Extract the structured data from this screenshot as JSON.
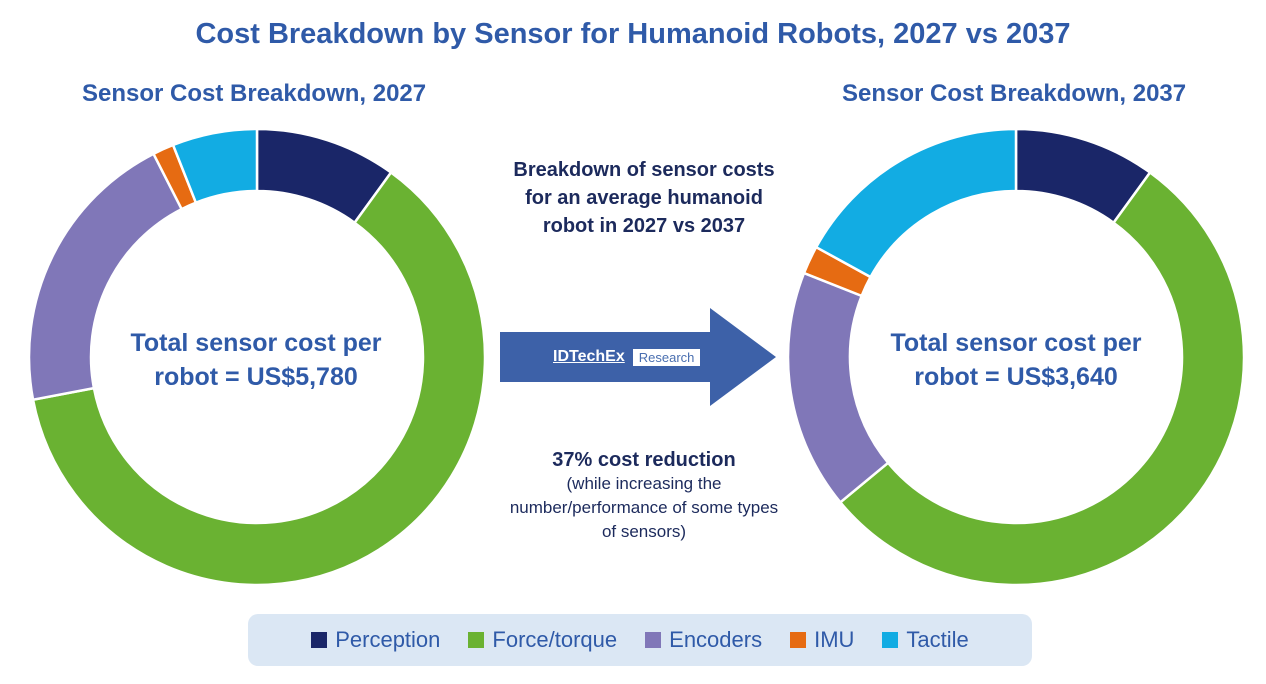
{
  "title": "Cost Breakdown by Sensor for Humanoid Robots, 2027 vs 2037",
  "middle": {
    "top_text": "Breakdown of sensor costs for an average humanoid robot in 2027 vs 2037",
    "reduction_head": "37% cost reduction",
    "reduction_body": "(while increasing the number/performance of some types of sensors)",
    "logo_brand": "IDTechEx",
    "logo_tag": "Research"
  },
  "colors": {
    "Perception": "#1a2668",
    "Force/torque": "#6ab232",
    "Encoders": "#8077b8",
    "IMU": "#e66b12",
    "Tactile": "#12ace3",
    "arrow": "#3d61a8",
    "title": "#2f5aa8"
  },
  "chart_data": [
    {
      "type": "pie",
      "subtitle": "Sensor Cost Breakdown, 2027",
      "center_label": "Total sensor cost per robot = US$5,780",
      "total": 5780,
      "categories": [
        "Perception",
        "Force/torque",
        "Encoders",
        "IMU",
        "Tactile"
      ],
      "values": [
        10,
        62,
        20.5,
        1.5,
        6
      ]
    },
    {
      "type": "pie",
      "subtitle": "Sensor Cost Breakdown, 2037",
      "center_label": "Total sensor cost per robot = US$3,640",
      "total": 3640,
      "categories": [
        "Perception",
        "Force/torque",
        "Encoders",
        "IMU",
        "Tactile"
      ],
      "values": [
        10,
        54,
        17,
        2,
        17
      ]
    }
  ],
  "legend": [
    "Perception",
    "Force/torque",
    "Encoders",
    "IMU",
    "Tactile"
  ]
}
